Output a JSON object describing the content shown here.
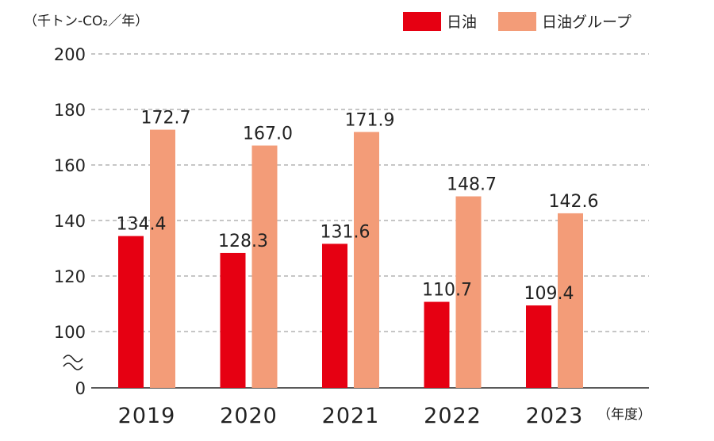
{
  "chart_data": {
    "type": "bar",
    "ylabel": "（千トン-CO₂／年）",
    "xlabel": "（年度）",
    "categories": [
      "2019",
      "2020",
      "2021",
      "2022",
      "2023"
    ],
    "series": [
      {
        "name": "日油",
        "color": "#e60012",
        "values": [
          134.4,
          128.3,
          131.6,
          110.7,
          109.4
        ],
        "labels": [
          "134.4",
          "128.3",
          "131.6",
          "110.7",
          "109.4"
        ]
      },
      {
        "name": "日油グループ",
        "color": "#f39c78",
        "values": [
          172.7,
          167.0,
          171.9,
          148.7,
          142.6
        ],
        "labels": [
          "172.7",
          "167.0",
          "171.9",
          "148.7",
          "142.6"
        ]
      }
    ],
    "yticks": [
      "0",
      "100",
      "120",
      "140",
      "160",
      "180",
      "200"
    ],
    "ylim": [
      100,
      200
    ],
    "axis_break": true,
    "grid": true,
    "legend_position": "top-right"
  }
}
